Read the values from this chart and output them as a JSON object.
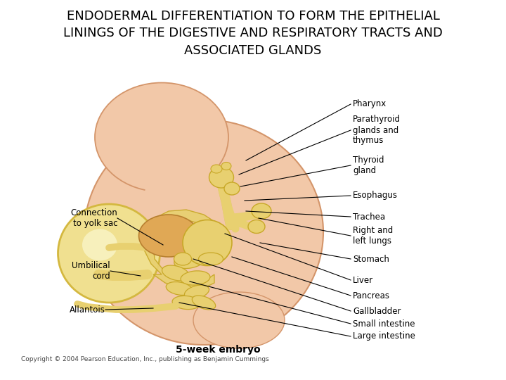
{
  "title_line1": "ENDODERMAL DIFFERENTIATION TO FORM THE EPITHELIAL",
  "title_line2": "LININGS OF THE DIGESTIVE AND RESPIRATORY TRACTS AND",
  "title_line3": "ASSOCIATED GLANDS",
  "title_fontsize": 13,
  "title_color": "#000000",
  "bg_color": "#ffffff",
  "caption": "5-week embryo",
  "caption_fontsize": 10,
  "caption_color": "#000000",
  "copyright": "Copyright © 2004 Pearson Education, Inc., publishing as Benjamin Cummings",
  "copyright_fontsize": 6.5,
  "embryo_body_color": "#f2c8a8",
  "embryo_body_edge": "#d4956a",
  "gut_color": "#e8d070",
  "gut_edge": "#c8a828",
  "yolk_color": "#f0e090",
  "yolk_edge": "#d4b840",
  "figsize": [
    7.2,
    5.4
  ],
  "dpi": 100
}
